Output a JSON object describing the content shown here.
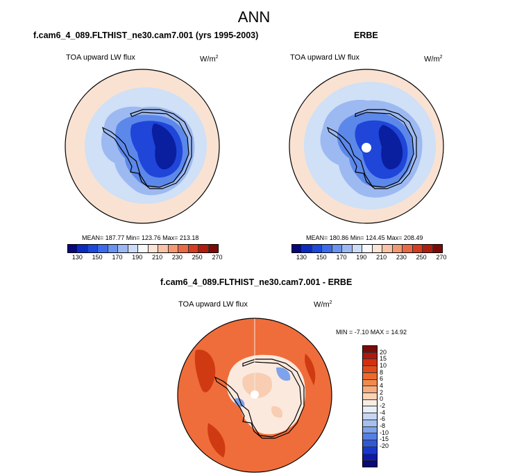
{
  "title": "ANN",
  "panels": [
    {
      "title": "f.cam6_4_089.FLTHIST_ne30.cam7.001 (yrs 1995-2003)",
      "variable": "TOA upward LW flux",
      "units_base": "W/m",
      "units_exp": "2",
      "stats": "MEAN= 187.77  Min= 123.76  Max= 213.18",
      "mean": 187.77,
      "min": 123.76,
      "max": 213.18
    },
    {
      "title": "ERBE",
      "variable": "TOA upward LW flux",
      "units_base": "W/m",
      "units_exp": "2",
      "stats": "MEAN= 180.86  Min= 124.45  Max= 208.49",
      "mean": 180.86,
      "min": 124.45,
      "max": 208.49
    }
  ],
  "diff": {
    "title": "f.cam6_4_089.FLTHIST_ne30.cam7.001 - ERBE",
    "variable": "TOA upward LW flux",
    "units_base": "W/m",
    "units_exp": "2",
    "stats": "MIN =  -7.10 MAX =  14.92",
    "min": -7.1,
    "max": 14.92
  },
  "colorbar_abs": {
    "colors": [
      "#08087a",
      "#0a2bbd",
      "#1c48dd",
      "#3c6bea",
      "#6a92ef",
      "#9cb8f3",
      "#cbdcf8",
      "#f6f8fb",
      "#fbe4d6",
      "#f8c3a6",
      "#f29872",
      "#e96a45",
      "#d63d20",
      "#b01d0e",
      "#7d0a06"
    ],
    "tick_labels": [
      "130",
      "150",
      "170",
      "190",
      "210",
      "230",
      "250",
      "270"
    ]
  },
  "colorbar_diff": {
    "colors": [
      "#7a0c08",
      "#b3160d",
      "#d1300f",
      "#e24b19",
      "#ec6a2c",
      "#f28a4c",
      "#f6ad7e",
      "#fad2b6",
      "#fbece0",
      "#e6eef9",
      "#c7d6f4",
      "#a5bff0",
      "#7ea2eb",
      "#5480e4",
      "#3058d9",
      "#1a38c8",
      "#0c1aa6",
      "#0a0a78"
    ],
    "tick_labels": [
      "20",
      "15",
      "10",
      "8",
      "6",
      "4",
      "2",
      "0",
      "-2",
      "-4",
      "-6",
      "-8",
      "-10",
      "-15",
      "-20"
    ]
  },
  "map_colors": {
    "ocean_warm": "#f9e2d2",
    "ocean_mid": "#cfe0f7",
    "ice_edge": "#9db9f1",
    "ice_mid": "#5c88ea",
    "ice_dark": "#1f46d8",
    "ice_core": "#0a1ea0",
    "diff_ocean": "#ef6d3a",
    "diff_dark": "#cf3a13",
    "diff_light": "#f8cdb2",
    "diff_pale": "#fbe9de",
    "diff_blue": "#7ea2eb"
  }
}
